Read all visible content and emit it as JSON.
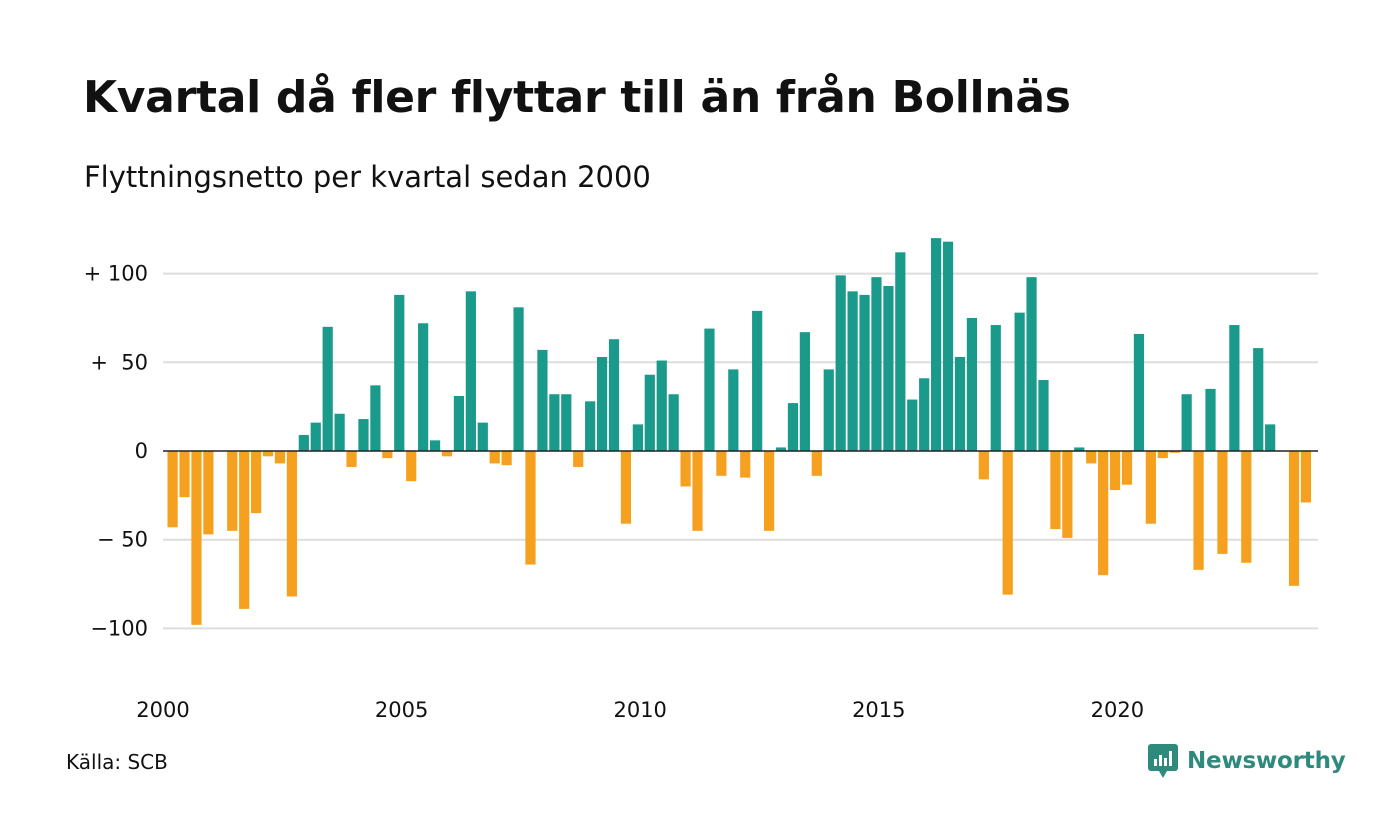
{
  "title": "Kvartal då fler flyttar till än från Bollnäs",
  "subtitle": "Flyttningsnetto per kvartal sedan 2000",
  "source": "Källa: SCB",
  "brand": {
    "name": "Newsworthy",
    "icon": "newsworthy-logo-icon",
    "color": "#2f8a7e"
  },
  "colors": {
    "positive": "#1a9a8a",
    "negative": "#f5a11f",
    "grid": "#dddddd",
    "zero": "#222222"
  },
  "chart_data": {
    "type": "bar",
    "ylim": [
      -125,
      130
    ],
    "grid": true,
    "y_ticks": [
      {
        "value": 100,
        "label": "+ 100"
      },
      {
        "value": 50,
        "label": "+  50"
      },
      {
        "value": 0,
        "label": "0"
      },
      {
        "value": -50,
        "label": "− 50"
      },
      {
        "value": -100,
        "label": "−100"
      }
    ],
    "x_ticks": [
      {
        "value": 2000,
        "label": "2000"
      },
      {
        "value": 2005,
        "label": "2005"
      },
      {
        "value": 2010,
        "label": "2010"
      },
      {
        "value": 2015,
        "label": "2015"
      },
      {
        "value": 2020,
        "label": "2020"
      }
    ],
    "series": [
      {
        "start_year": 2000,
        "period": "quarter",
        "values": [
          -43,
          -26,
          -98,
          -47,
          0,
          -45,
          -89,
          -35,
          -3,
          -7,
          -82,
          9,
          16,
          70,
          21,
          -9,
          18,
          37,
          -4,
          88,
          -17,
          72,
          6,
          -3,
          31,
          90,
          16,
          -7,
          -8,
          81,
          -64,
          57,
          32,
          32,
          -9,
          28,
          53,
          63,
          -41,
          15,
          43,
          51,
          32,
          -20,
          -45,
          69,
          -14,
          46,
          -15,
          79,
          -45,
          2,
          27,
          67,
          -14,
          46,
          99,
          90,
          88,
          98,
          93,
          112,
          29,
          41,
          120,
          118,
          53,
          75,
          -16,
          71,
          -81,
          78,
          98,
          40,
          -44,
          -49,
          2,
          -7,
          -70,
          -22,
          -19,
          66,
          -41,
          -4,
          -1,
          32,
          -67,
          35,
          -58,
          71,
          -63,
          58,
          15,
          0,
          -76,
          -29
        ]
      }
    ]
  }
}
